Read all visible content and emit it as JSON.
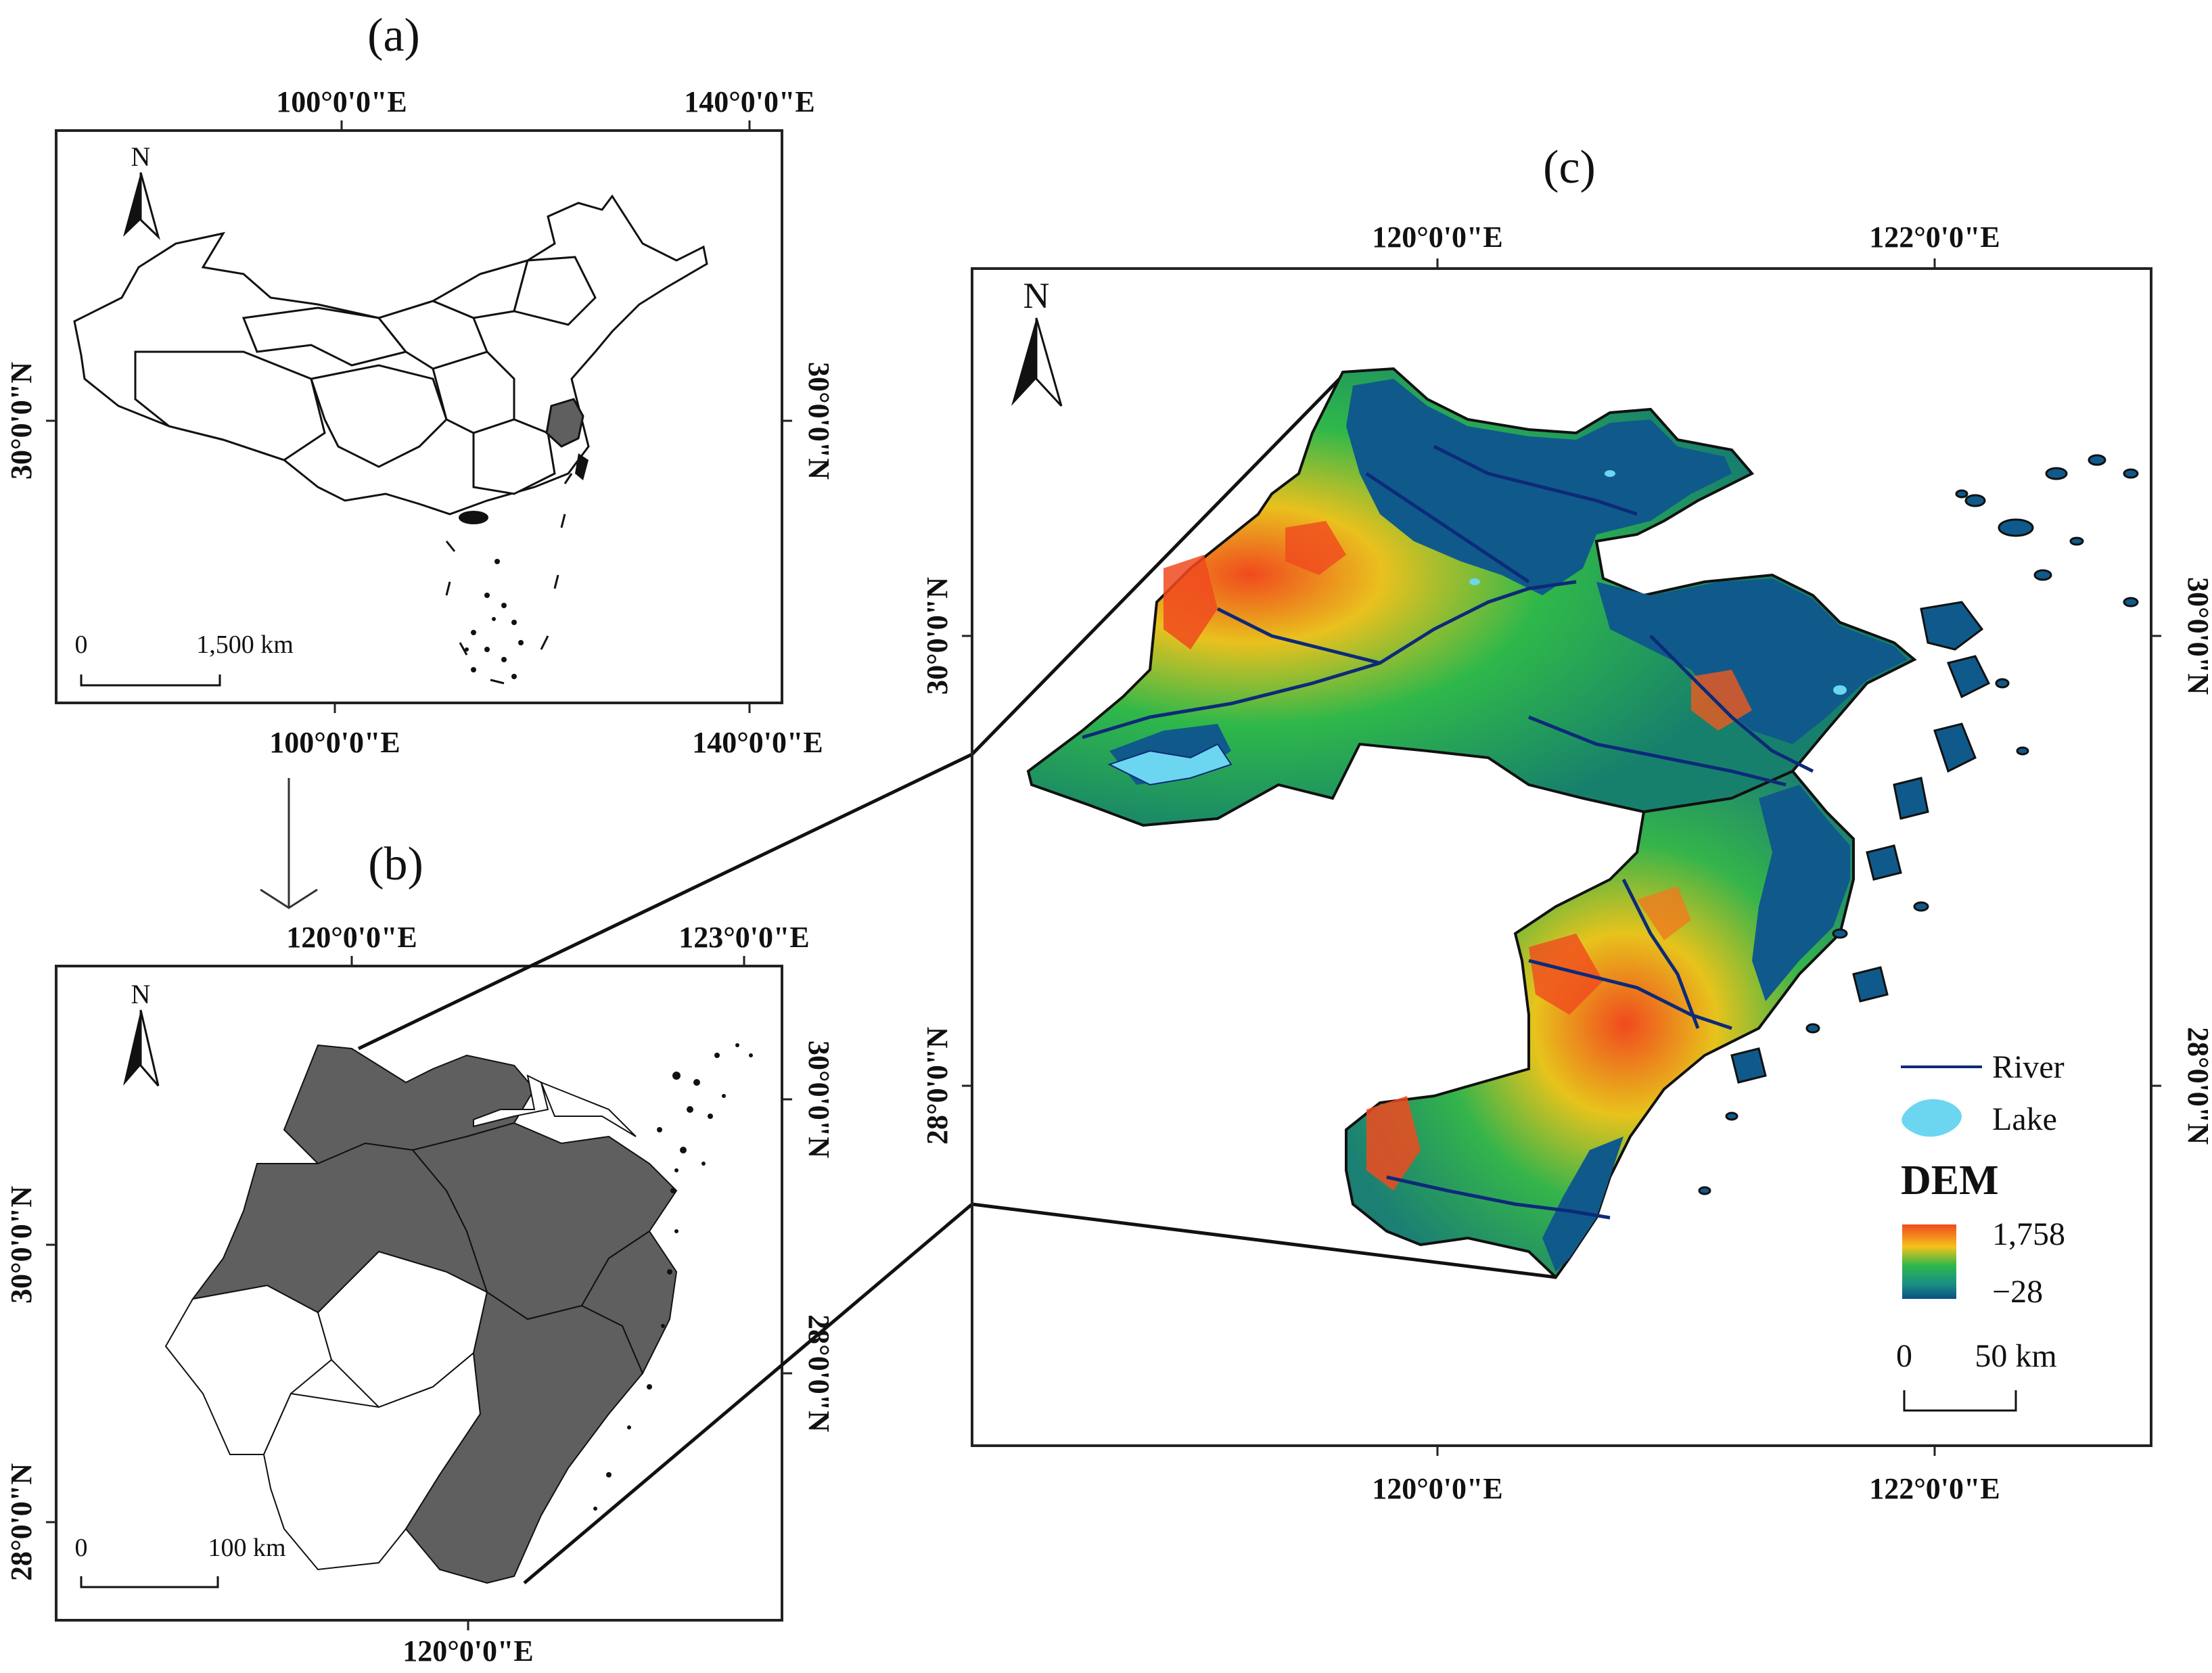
{
  "panels": {
    "a": {
      "label": "(a)",
      "north": "N",
      "top_lon_1": "100°0'0\"E",
      "top_lon_2": "140°0'0\"E",
      "bottom_lon_1": "100°0'0\"E",
      "bottom_lon_2": "140°0'0\"E",
      "left_lat": "30°0'0\"N",
      "right_lat": "30°0'0\"N",
      "scale_zero": "0",
      "scale_end": "1,500 km"
    },
    "b": {
      "label": "(b)",
      "north": "N",
      "top_lon_1": "120°0'0\"E",
      "top_lon_2": "123°0'0\"E",
      "bottom_lon": "120°0'0\"E",
      "left_lat_1": "30°0'0\"N",
      "left_lat_2": "28°0'0\"N",
      "right_lat_1": "30°0'0\"N",
      "right_lat_2": "28°0'0\"N",
      "scale_zero": "0",
      "scale_end": "100 km"
    },
    "c": {
      "label": "(c)",
      "north": "N",
      "top_lon_1": "120°0'0\"E",
      "top_lon_2": "122°0'0\"E",
      "bottom_lon_1": "120°0'0\"E",
      "bottom_lon_2": "122°0'0\"E",
      "left_lat_1": "30°0'0\"N",
      "left_lat_2": "28°0'0\"N",
      "right_lat_1": "30°0'0\"N",
      "right_lat_2": "28°0'0\"N",
      "legend": {
        "river": "River",
        "lake": "Lake",
        "dem_title": "DEM",
        "dem_max": "1,758",
        "dem_min": "−28"
      },
      "scale_zero": "0",
      "scale_end": "50 km"
    }
  },
  "colors": {
    "province_fill": "#5f5f5f",
    "dem_low": "#0b4f82",
    "dem_mid": "#2fb84a",
    "dem_high": "#f04a1e",
    "river": "#0d2a78",
    "lake": "#6cd6f0"
  }
}
